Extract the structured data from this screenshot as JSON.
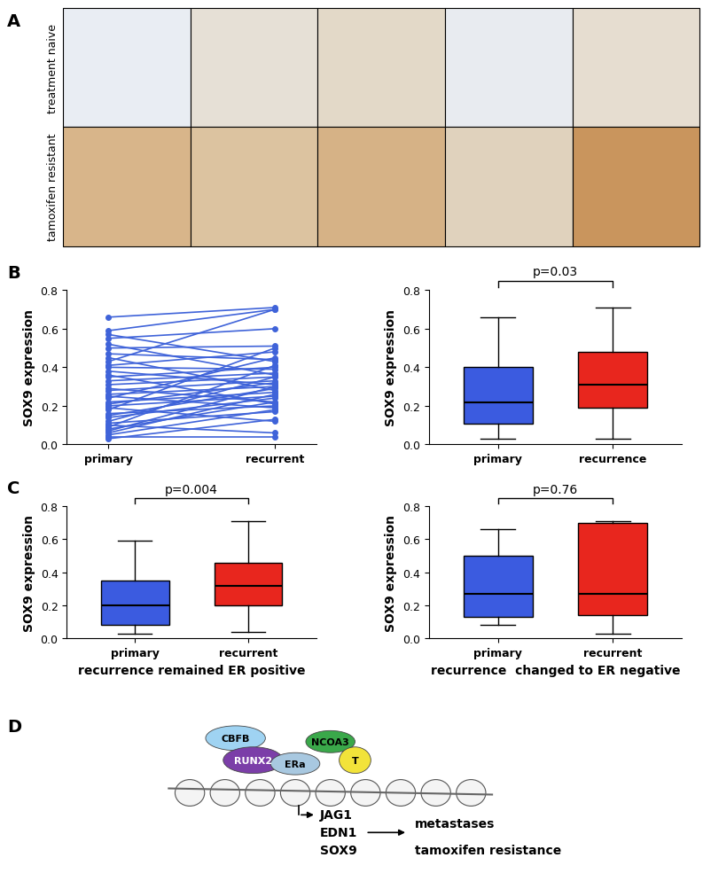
{
  "panel_labels": [
    "A",
    "B",
    "C",
    "D"
  ],
  "images": {
    "row_labels": [
      "treatment naive",
      "tamoxifen resistant"
    ]
  },
  "chart_data": [
    {
      "type": "paired",
      "categories": [
        "primary",
        "recurrent"
      ],
      "ylabel": "SOX9 expression",
      "color": "#3f63d9",
      "marker": "o",
      "ylim": [
        0.0,
        0.8
      ],
      "yticks": [
        0.0,
        0.2,
        0.4,
        0.6,
        0.8
      ],
      "pairs": [
        [
          0.66,
          0.71
        ],
        [
          0.59,
          0.7
        ],
        [
          0.57,
          0.43
        ],
        [
          0.55,
          0.6
        ],
        [
          0.52,
          0.36
        ],
        [
          0.5,
          0.51
        ],
        [
          0.47,
          0.44
        ],
        [
          0.45,
          0.28
        ],
        [
          0.43,
          0.7
        ],
        [
          0.41,
          0.48
        ],
        [
          0.4,
          0.39
        ],
        [
          0.38,
          0.31
        ],
        [
          0.36,
          0.21
        ],
        [
          0.35,
          0.4
        ],
        [
          0.33,
          0.37
        ],
        [
          0.31,
          0.35
        ],
        [
          0.29,
          0.22
        ],
        [
          0.28,
          0.33
        ],
        [
          0.26,
          0.3
        ],
        [
          0.25,
          0.19
        ],
        [
          0.24,
          0.45
        ],
        [
          0.22,
          0.27
        ],
        [
          0.21,
          0.32
        ],
        [
          0.2,
          0.25
        ],
        [
          0.19,
          0.12
        ],
        [
          0.18,
          0.5
        ],
        [
          0.16,
          0.2
        ],
        [
          0.15,
          0.29
        ],
        [
          0.14,
          0.24
        ],
        [
          0.12,
          0.35
        ],
        [
          0.11,
          0.17
        ],
        [
          0.1,
          0.06
        ],
        [
          0.09,
          0.41
        ],
        [
          0.08,
          0.22
        ],
        [
          0.07,
          0.3
        ],
        [
          0.06,
          0.26
        ],
        [
          0.05,
          0.18
        ],
        [
          0.04,
          0.04
        ],
        [
          0.03,
          0.13
        ]
      ]
    },
    {
      "type": "box",
      "categories": [
        "primary",
        "recurrence"
      ],
      "ylabel": "SOX9 expression",
      "colors": [
        "#3b5be0",
        "#e8261e"
      ],
      "ylim": [
        0.0,
        0.8
      ],
      "yticks": [
        0.0,
        0.2,
        0.4,
        0.6,
        0.8
      ],
      "annotation": "p=0.03",
      "box": [
        {
          "min": 0.03,
          "q1": 0.11,
          "median": 0.22,
          "q3": 0.4,
          "max": 0.66
        },
        {
          "min": 0.03,
          "q1": 0.19,
          "median": 0.31,
          "q3": 0.48,
          "max": 0.71
        }
      ]
    },
    {
      "type": "box",
      "categories": [
        "primary",
        "recurrent"
      ],
      "ylabel": "SOX9 expression",
      "xlabel": "recurrence remained ER positive",
      "colors": [
        "#3b5be0",
        "#e8261e"
      ],
      "ylim": [
        0.0,
        0.8
      ],
      "yticks": [
        0.0,
        0.2,
        0.4,
        0.6,
        0.8
      ],
      "annotation": "p=0.004",
      "box": [
        {
          "min": 0.03,
          "q1": 0.08,
          "median": 0.2,
          "q3": 0.35,
          "max": 0.59
        },
        {
          "min": 0.04,
          "q1": 0.2,
          "median": 0.32,
          "q3": 0.46,
          "max": 0.71
        }
      ]
    },
    {
      "type": "box",
      "categories": [
        "primary",
        "recurrent"
      ],
      "ylabel": "SOX9 expression",
      "xlabel": "recurrence  changed to ER negative",
      "colors": [
        "#3b5be0",
        "#e8261e"
      ],
      "ylim": [
        0.0,
        0.8
      ],
      "yticks": [
        0.0,
        0.2,
        0.4,
        0.6,
        0.8
      ],
      "annotation": "p=0.76",
      "box": [
        {
          "min": 0.08,
          "q1": 0.13,
          "median": 0.27,
          "q3": 0.5,
          "max": 0.66
        },
        {
          "min": 0.03,
          "q1": 0.14,
          "median": 0.27,
          "q3": 0.7,
          "max": 0.71
        }
      ]
    }
  ],
  "diagram": {
    "proteins": [
      "CBFB",
      "RUNX2",
      "ERa",
      "NCOA3",
      "T"
    ],
    "genes": [
      "JAG1",
      "EDN1",
      "SOX9"
    ],
    "outcomes": [
      "metastases",
      "tamoxifen resistance"
    ]
  }
}
